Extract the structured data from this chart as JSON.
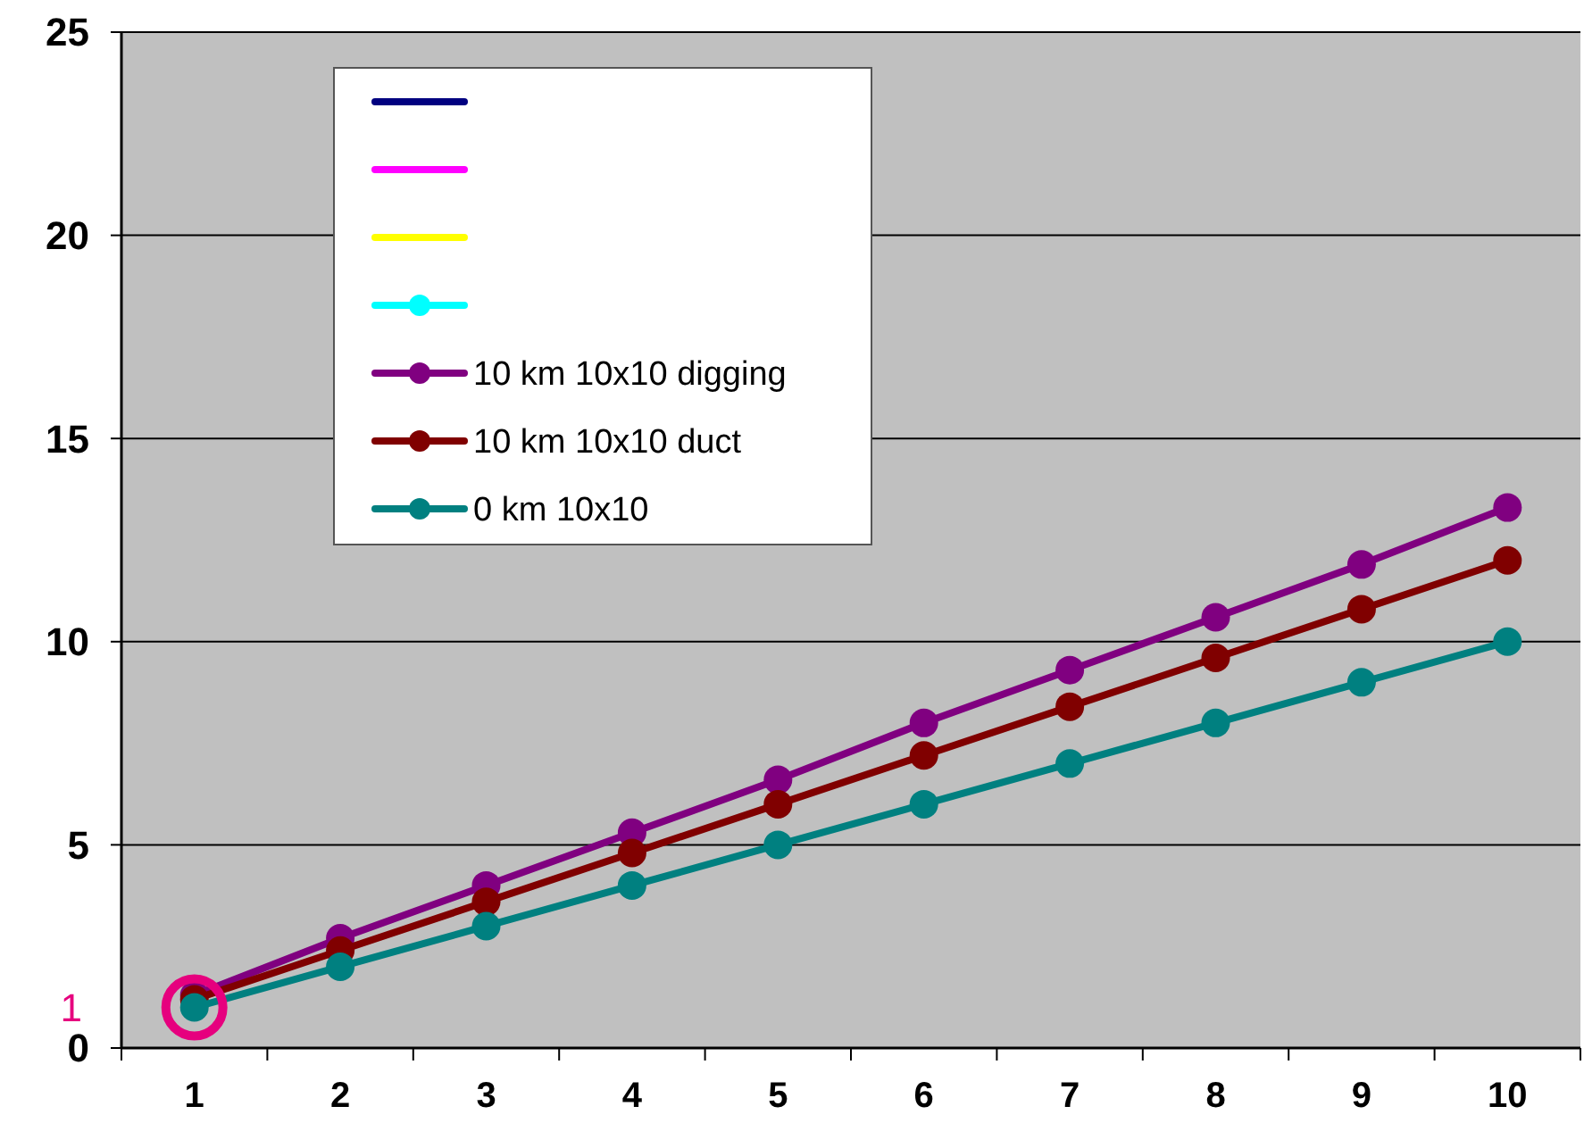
{
  "chart_data": {
    "type": "line",
    "categories": [
      "1",
      "2",
      "3",
      "4",
      "5",
      "6",
      "7",
      "8",
      "9",
      "10"
    ],
    "ylim": [
      0,
      25
    ],
    "yticks": [
      0,
      5,
      10,
      15,
      20,
      25
    ],
    "grid": "y",
    "legend": "top left",
    "marker": "circle",
    "annotations": [
      {
        "text": "1",
        "x": "1",
        "y": 1
      }
    ],
    "series": [
      {
        "color": "#000080",
        "marker": "none",
        "values": [
          null,
          null,
          null,
          null,
          null,
          null,
          null,
          null,
          null,
          null
        ]
      },
      {
        "color": "#ff00ff",
        "marker": "none",
        "values": [
          null,
          null,
          null,
          null,
          null,
          null,
          null,
          null,
          null,
          null
        ]
      },
      {
        "color": "#ffff00",
        "marker": "none",
        "values": [
          null,
          null,
          null,
          null,
          null,
          null,
          null,
          null,
          null,
          null
        ]
      },
      {
        "color": "#00ffff",
        "values": [
          null,
          null,
          null,
          null,
          null,
          null,
          null,
          null,
          null,
          null
        ]
      },
      {
        "name": "10 km 10x10 digging",
        "color": "#800080",
        "values": [
          1.3,
          2.7,
          4,
          5.3,
          6.6,
          8,
          9.3,
          10.6,
          11.9,
          13.3
        ]
      },
      {
        "name": "10 km 10x10 duct",
        "color": "#800000",
        "values": [
          1.2,
          2.4,
          3.6,
          4.8,
          6,
          7.2,
          8.4,
          9.6,
          10.8,
          12
        ]
      },
      {
        "name": "0 km  10x10",
        "color": "#008080",
        "values": [
          1,
          2,
          3,
          4,
          5,
          6,
          7,
          8,
          9,
          10
        ]
      }
    ]
  }
}
